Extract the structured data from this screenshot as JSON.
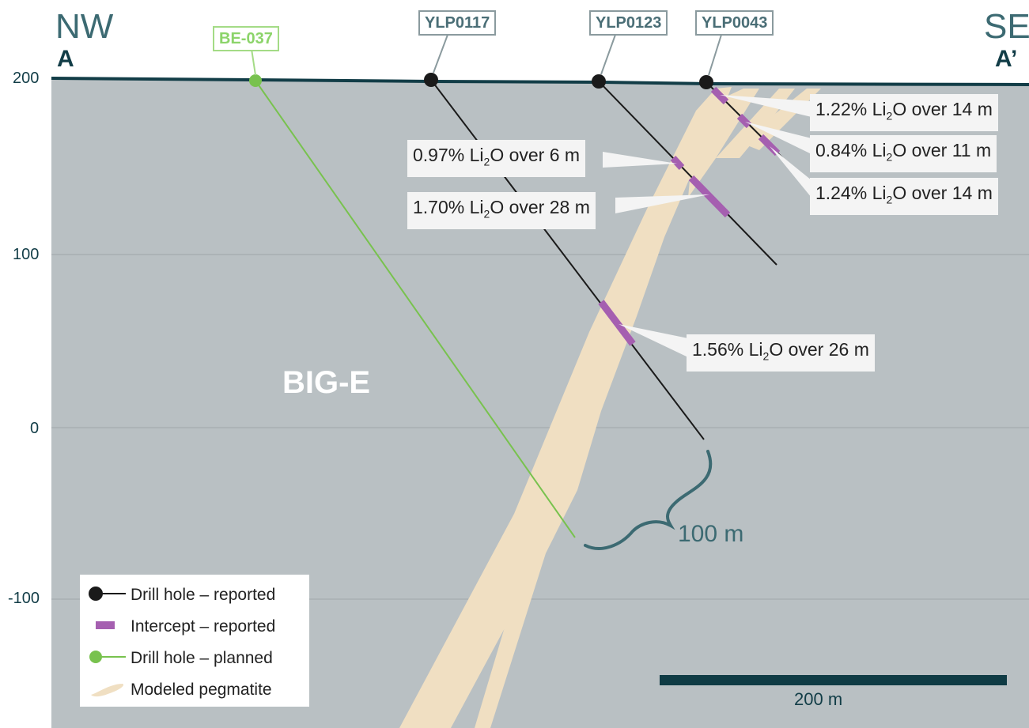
{
  "section": {
    "left_dir": "NW",
    "left_sec": "A",
    "right_dir": "SE",
    "right_sec": "A’",
    "region_label": "BIG-E",
    "distance_label": "100 m",
    "scale_label": "200 m"
  },
  "y_axis": {
    "ticks": [
      "200",
      "100",
      "0",
      "-100"
    ]
  },
  "drill_holes": [
    {
      "id": "BE-037",
      "status": "planned"
    },
    {
      "id": "YLP0117",
      "status": "reported"
    },
    {
      "id": "YLP0123",
      "status": "reported"
    },
    {
      "id": "YLP0043",
      "status": "reported"
    }
  ],
  "intercepts": [
    {
      "text_pre": "1.22% Li",
      "sub": "2",
      "text_post": "O over 14 m"
    },
    {
      "text_pre": "0.84% Li",
      "sub": "2",
      "text_post": "O over 11 m"
    },
    {
      "text_pre": "1.24% Li",
      "sub": "2",
      "text_post": "O over 14 m"
    },
    {
      "text_pre": "0.97% Li",
      "sub": "2",
      "text_post": "O over 6 m"
    },
    {
      "text_pre": "1.70% Li",
      "sub": "2",
      "text_post": "O over 28 m"
    },
    {
      "text_pre": "1.56% Li",
      "sub": "2",
      "text_post": "O over 26 m"
    }
  ],
  "legend": [
    {
      "label": "Drill hole – reported",
      "icon": "black-dot-line"
    },
    {
      "label": "Intercept – reported",
      "icon": "purple-bar"
    },
    {
      "label": "Drill hole – planned",
      "icon": "green-dot-line"
    },
    {
      "label": "Modeled pegmatite",
      "icon": "tan-blob"
    }
  ],
  "colors": {
    "ground": "#b9c0c3",
    "surface_line": "#123d47",
    "pegmatite": "#f0dfc2",
    "intercept": "#a55fb0",
    "planned": "#78c24e",
    "reported": "#1a1a1a",
    "gridline": "#9ea6a9"
  }
}
